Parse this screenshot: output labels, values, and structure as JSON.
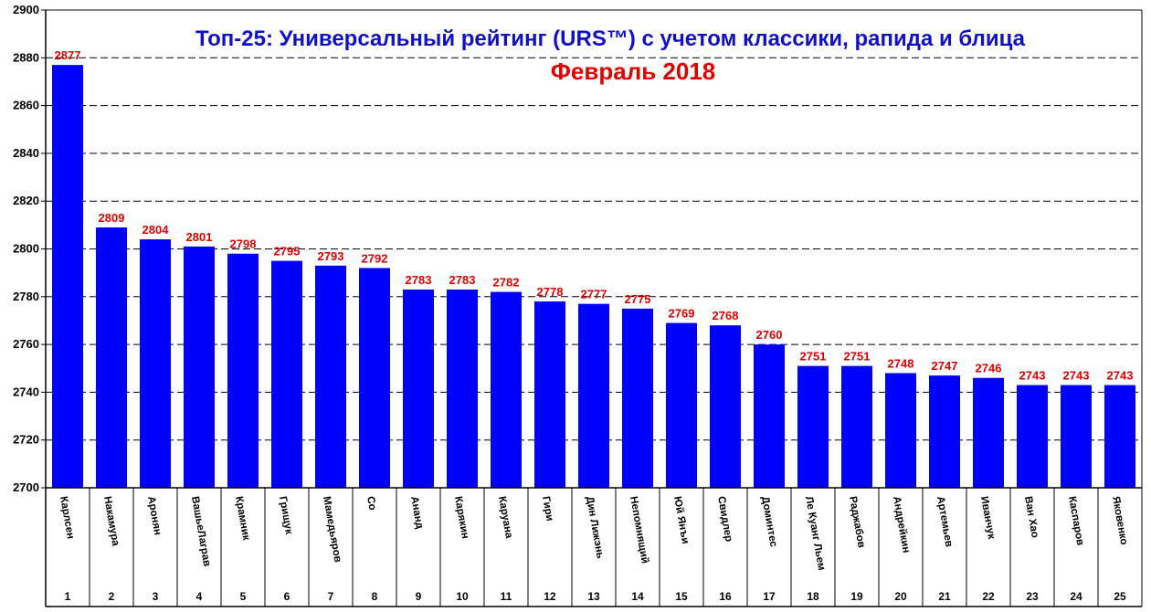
{
  "chart_data": {
    "type": "bar",
    "title": "Топ-25: Универсальный рейтинг (URS™) с учетом классики, рапида и блица",
    "subtitle": "Февраль 2018",
    "xlabel": "",
    "ylabel": "",
    "ylim": [
      2700,
      2900
    ],
    "yticks": [
      2700,
      2720,
      2740,
      2760,
      2780,
      2800,
      2820,
      2840,
      2860,
      2880,
      2900
    ],
    "grid": true,
    "categories": [
      "Карлсен",
      "Накамура",
      "Аронян",
      "ВашьеЛаграв",
      "Крамник",
      "Грищук",
      "Мамедьяров",
      "Со",
      "Ананд",
      "Карякин",
      "Каруана",
      "Гири",
      "Дин Лижэнь",
      "Непомнящий",
      "Юй Янъи",
      "Свидлер",
      "Доминтес",
      "Ле Куанг Льем",
      "Раджабов",
      "Андрейкин",
      "Артемьев",
      "Иванчук",
      "Ван Хао",
      "Каспаров",
      "Яковенко"
    ],
    "ranks": [
      "1",
      "2",
      "3",
      "4",
      "5",
      "6",
      "7",
      "8",
      "9",
      "10",
      "11",
      "12",
      "13",
      "14",
      "15",
      "16",
      "17",
      "18",
      "19",
      "20",
      "21",
      "22",
      "23",
      "24",
      "25"
    ],
    "values": [
      2877,
      2809,
      2804,
      2801,
      2798,
      2795,
      2793,
      2792,
      2783,
      2783,
      2782,
      2778,
      2777,
      2775,
      2769,
      2768,
      2760,
      2751,
      2751,
      2748,
      2747,
      2746,
      2743,
      2743,
      2743
    ],
    "colors": {
      "bar": "#0000ff",
      "value_label": "#e00000",
      "title": "#1010c8",
      "subtitle": "#e00000"
    }
  }
}
